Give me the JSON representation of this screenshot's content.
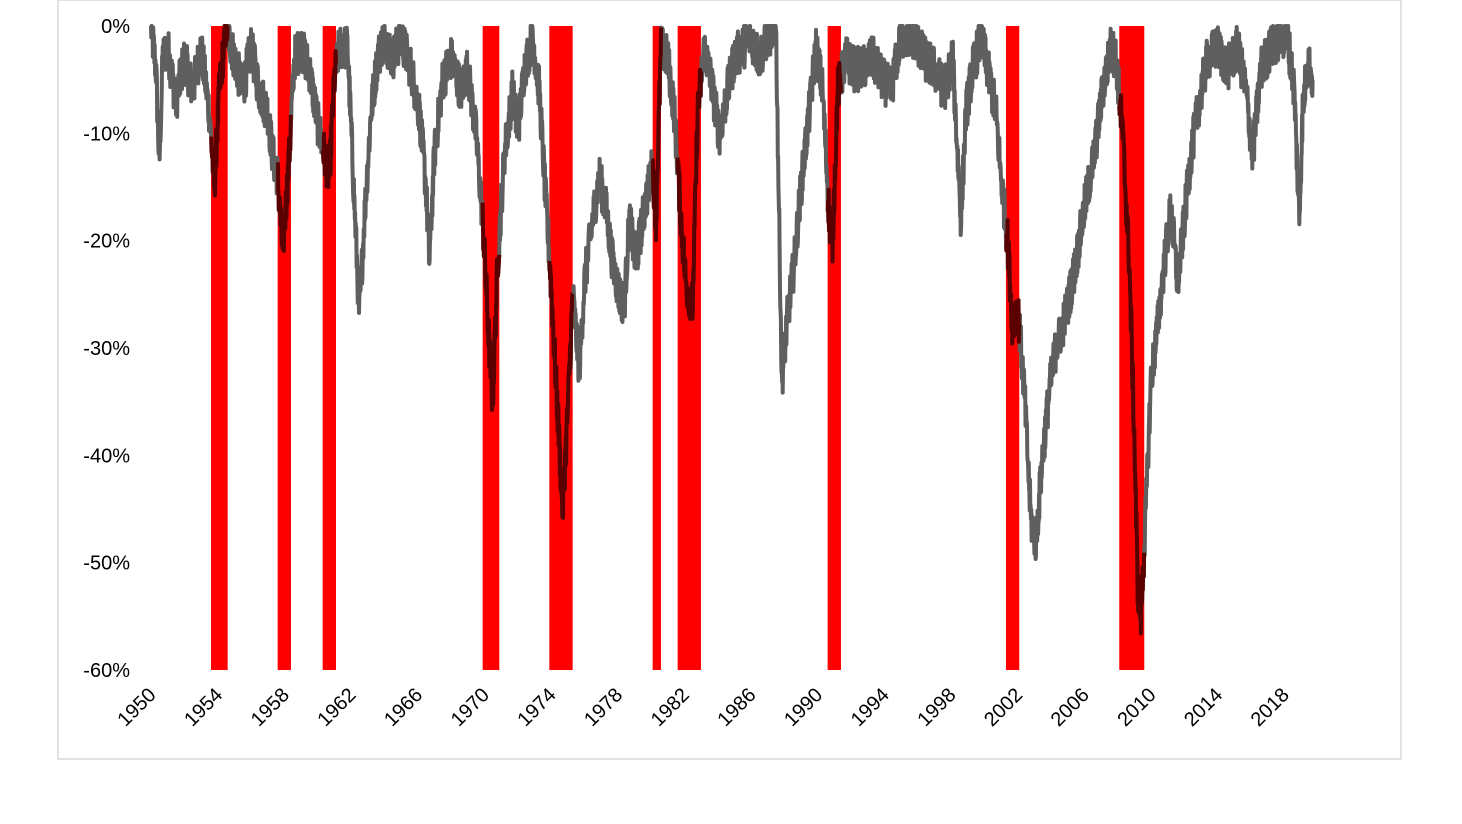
{
  "chart_data": {
    "type": "area",
    "title": "",
    "xlabel": "",
    "ylabel": "",
    "xlim": [
      1950,
      2020
    ],
    "ylim": [
      -60,
      0
    ],
    "y_ticks": [
      0,
      -10,
      -20,
      -30,
      -40,
      -50,
      -60
    ],
    "y_tick_labels": [
      "0%",
      "-10%",
      "-20%",
      "-30%",
      "-40%",
      "-50%",
      "-60%"
    ],
    "x_ticks": [
      1950,
      1954,
      1958,
      1962,
      1966,
      1970,
      1974,
      1978,
      1982,
      1986,
      1990,
      1994,
      1998,
      2002,
      2006,
      2010,
      2014,
      2018
    ],
    "x_tick_labels": [
      "1950",
      "1954",
      "1958",
      "1962",
      "1966",
      "1970",
      "1974",
      "1978",
      "1982",
      "1986",
      "1990",
      "1994",
      "1998",
      "2002",
      "2006",
      "2010",
      "2014",
      "2018"
    ],
    "grid": false,
    "legend": "none",
    "colors": {
      "drawdown_line": "#5f5f5f",
      "recession_band": "#ff0000",
      "overlap_line": "#5a0000",
      "frame": "#d9d9d9"
    },
    "recession_periods": [
      [
        1953.6,
        1954.6
      ],
      [
        1957.6,
        1958.4
      ],
      [
        1960.3,
        1961.1
      ],
      [
        1969.9,
        1970.9
      ],
      [
        1973.9,
        1975.3
      ],
      [
        1980.1,
        1980.6
      ],
      [
        1981.6,
        1983.0
      ],
      [
        1990.6,
        1991.4
      ],
      [
        2001.3,
        2002.1
      ],
      [
        2008.1,
        2009.6
      ]
    ],
    "series": [
      {
        "values": [
          [
            1950.0,
            0
          ],
          [
            1950.3,
            -4
          ],
          [
            1950.5,
            -13
          ],
          [
            1950.7,
            -3
          ],
          [
            1951.0,
            -2
          ],
          [
            1951.5,
            -7
          ],
          [
            1952.0,
            -3
          ],
          [
            1952.5,
            -6
          ],
          [
            1953.0,
            -2
          ],
          [
            1953.5,
            -8
          ],
          [
            1953.8,
            -15
          ],
          [
            1954.1,
            -6
          ],
          [
            1954.5,
            0
          ],
          [
            1955.0,
            -3
          ],
          [
            1955.5,
            -6
          ],
          [
            1956.0,
            -2
          ],
          [
            1956.5,
            -6
          ],
          [
            1957.0,
            -8
          ],
          [
            1957.3,
            -12
          ],
          [
            1957.6,
            -14
          ],
          [
            1957.9,
            -21
          ],
          [
            1958.3,
            -12
          ],
          [
            1958.6,
            -3
          ],
          [
            1959.0,
            -2
          ],
          [
            1959.5,
            -4
          ],
          [
            1960.0,
            -9
          ],
          [
            1960.4,
            -12
          ],
          [
            1960.7,
            -14
          ],
          [
            1961.0,
            -5
          ],
          [
            1961.3,
            -2
          ],
          [
            1961.8,
            -2
          ],
          [
            1962.3,
            -20
          ],
          [
            1962.5,
            -27
          ],
          [
            1962.8,
            -18
          ],
          [
            1963.2,
            -8
          ],
          [
            1963.6,
            -3
          ],
          [
            1964.0,
            -1
          ],
          [
            1964.5,
            -3
          ],
          [
            1965.0,
            -1
          ],
          [
            1965.6,
            -4
          ],
          [
            1966.1,
            -8
          ],
          [
            1966.5,
            -15
          ],
          [
            1966.7,
            -22
          ],
          [
            1967.0,
            -12
          ],
          [
            1967.5,
            -5
          ],
          [
            1968.0,
            -3
          ],
          [
            1968.6,
            -6
          ],
          [
            1969.0,
            -4
          ],
          [
            1969.5,
            -10
          ],
          [
            1969.9,
            -18
          ],
          [
            1970.3,
            -30
          ],
          [
            1970.5,
            -35
          ],
          [
            1970.8,
            -22
          ],
          [
            1971.2,
            -12
          ],
          [
            1971.7,
            -6
          ],
          [
            1972.0,
            -10
          ],
          [
            1972.4,
            -4
          ],
          [
            1972.9,
            -1
          ],
          [
            1973.3,
            -6
          ],
          [
            1973.6,
            -14
          ],
          [
            1974.0,
            -24
          ],
          [
            1974.4,
            -36
          ],
          [
            1974.7,
            -45
          ],
          [
            1975.0,
            -36
          ],
          [
            1975.3,
            -25
          ],
          [
            1975.7,
            -32
          ],
          [
            1976.0,
            -24
          ],
          [
            1976.5,
            -18
          ],
          [
            1976.9,
            -14
          ],
          [
            1977.3,
            -17
          ],
          [
            1977.7,
            -22
          ],
          [
            1978.1,
            -25
          ],
          [
            1978.4,
            -26
          ],
          [
            1978.7,
            -18
          ],
          [
            1979.1,
            -22
          ],
          [
            1979.6,
            -17
          ],
          [
            1980.1,
            -13
          ],
          [
            1980.3,
            -18
          ],
          [
            1980.6,
            -2
          ],
          [
            1981.0,
            -3
          ],
          [
            1981.4,
            -8
          ],
          [
            1981.8,
            -18
          ],
          [
            1982.1,
            -24
          ],
          [
            1982.5,
            -26
          ],
          [
            1982.8,
            -8
          ],
          [
            1983.2,
            -2
          ],
          [
            1983.6,
            -5
          ],
          [
            1984.1,
            -10
          ],
          [
            1984.6,
            -6
          ],
          [
            1985.0,
            -3
          ],
          [
            1985.5,
            -2
          ],
          [
            1986.0,
            -1
          ],
          [
            1986.5,
            -3
          ],
          [
            1987.0,
            -1
          ],
          [
            1987.5,
            0
          ],
          [
            1987.85,
            -33
          ],
          [
            1988.2,
            -27
          ],
          [
            1988.6,
            -22
          ],
          [
            1989.0,
            -15
          ],
          [
            1989.5,
            -8
          ],
          [
            1989.9,
            -2
          ],
          [
            1990.3,
            -6
          ],
          [
            1990.7,
            -18
          ],
          [
            1990.9,
            -20
          ],
          [
            1991.2,
            -6
          ],
          [
            1991.7,
            -3
          ],
          [
            1992.2,
            -4
          ],
          [
            1992.7,
            -4
          ],
          [
            1993.3,
            -3
          ],
          [
            1993.9,
            -5
          ],
          [
            1994.4,
            -6
          ],
          [
            1995.0,
            -1
          ],
          [
            1995.8,
            -1
          ],
          [
            1996.4,
            -3
          ],
          [
            1997.0,
            -4
          ],
          [
            1997.6,
            -6
          ],
          [
            1998.1,
            -3
          ],
          [
            1998.6,
            -18
          ],
          [
            1998.9,
            -8
          ],
          [
            1999.3,
            -4
          ],
          [
            1999.8,
            -1
          ],
          [
            2000.2,
            -4
          ],
          [
            2000.7,
            -8
          ],
          [
            2001.0,
            -14
          ],
          [
            2001.4,
            -20
          ],
          [
            2001.7,
            -28
          ],
          [
            2002.0,
            -26
          ],
          [
            2002.4,
            -34
          ],
          [
            2002.8,
            -46
          ],
          [
            2003.1,
            -48
          ],
          [
            2003.5,
            -40
          ],
          [
            2003.9,
            -34
          ],
          [
            2004.3,
            -30
          ],
          [
            2004.7,
            -28
          ],
          [
            2005.0,
            -26
          ],
          [
            2005.5,
            -22
          ],
          [
            2006.0,
            -17
          ],
          [
            2006.6,
            -12
          ],
          [
            2007.1,
            -6
          ],
          [
            2007.6,
            -2
          ],
          [
            2007.9,
            -3
          ],
          [
            2008.3,
            -10
          ],
          [
            2008.7,
            -22
          ],
          [
            2009.0,
            -38
          ],
          [
            2009.2,
            -52
          ],
          [
            2009.4,
            -55
          ],
          [
            2009.7,
            -45
          ],
          [
            2010.0,
            -33
          ],
          [
            2010.4,
            -28
          ],
          [
            2010.8,
            -22
          ],
          [
            2011.2,
            -17
          ],
          [
            2011.6,
            -24
          ],
          [
            2012.0,
            -18
          ],
          [
            2012.4,
            -12
          ],
          [
            2012.9,
            -7
          ],
          [
            2013.4,
            -3
          ],
          [
            2014.0,
            -2
          ],
          [
            2014.6,
            -4
          ],
          [
            2015.2,
            -2
          ],
          [
            2015.7,
            -6
          ],
          [
            2016.1,
            -12
          ],
          [
            2016.6,
            -4
          ],
          [
            2017.2,
            -2
          ],
          [
            2017.8,
            -1
          ],
          [
            2018.2,
            -1
          ],
          [
            2018.6,
            -6
          ],
          [
            2018.9,
            -18
          ],
          [
            2019.1,
            -8
          ],
          [
            2019.4,
            -3
          ],
          [
            2019.7,
            -5
          ]
        ]
      }
    ]
  }
}
